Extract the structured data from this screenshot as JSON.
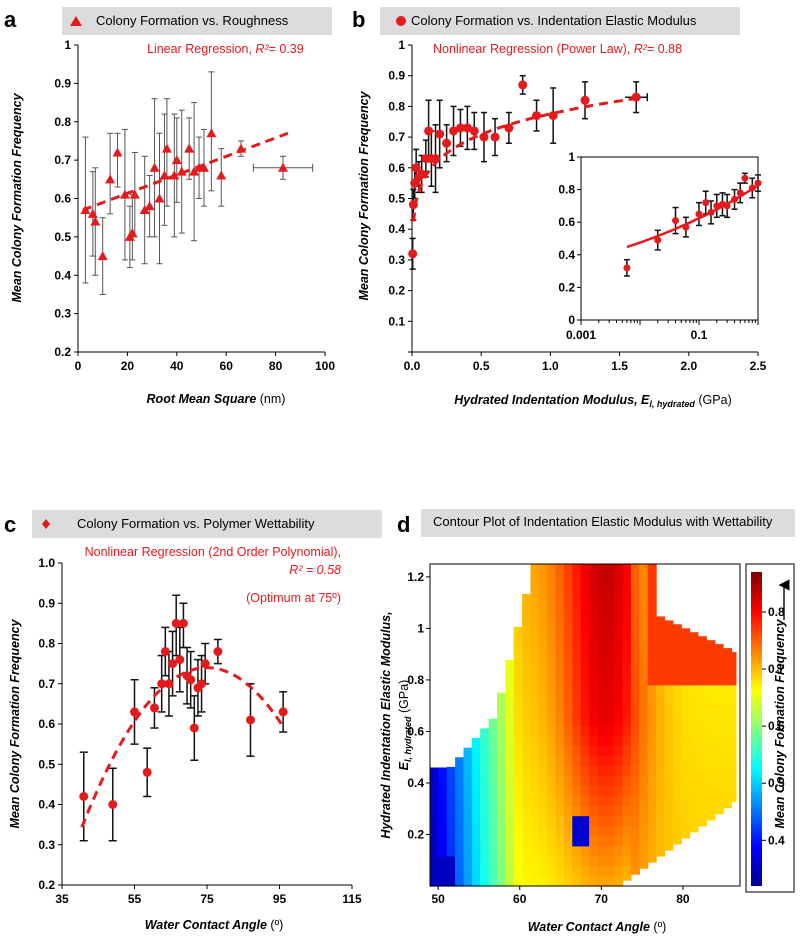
{
  "colors": {
    "marker": "#e41a1c",
    "fit": "#e41a1c",
    "title_bg": "#dcdcdc"
  },
  "panels": {
    "a": {
      "letter": "a",
      "title": "Colony Formation vs. Roughness",
      "annotation_prefix": "Linear Regression, ",
      "r2_symbol": "R²",
      "r2_value": "= 0.39"
    },
    "b": {
      "letter": "b",
      "title": "Colony Formation vs. Indentation Elastic Modulus",
      "annotation_prefix": "Nonlinear Regression (Power Law), ",
      "r2_symbol": "R²",
      "r2_value": "= 0.88"
    },
    "c": {
      "letter": "c",
      "title": "Colony Formation vs. Polymer Wettability",
      "annotation_line1": "Nonlinear Regression (2nd Order Polynomial),",
      "annotation_line2": "R² = 0.58",
      "annotation_line3": "(Optimum at 75º)"
    },
    "d": {
      "letter": "d",
      "title": "Contour Plot of Indentation Elastic Modulus with Wettability"
    }
  },
  "chart_data": [
    {
      "id": "a",
      "type": "scatter",
      "title": "Colony Formation vs. Roughness",
      "xlabel": "Root Mean Square",
      "xunit": " (nm)",
      "ylabel": "Mean Colony Formation Frequency",
      "xlim": [
        0,
        100
      ],
      "ylim": [
        0.2,
        1.0
      ],
      "xticks": [
        0,
        20,
        40,
        60,
        80,
        100
      ],
      "yticks": [
        0.2,
        0.3,
        0.4,
        0.5,
        0.6,
        0.7,
        0.8,
        0.9,
        1
      ],
      "marker": "triangle",
      "points": [
        {
          "x": 3,
          "y": 0.57,
          "lo": 0.38,
          "hi": 0.76
        },
        {
          "x": 6,
          "y": 0.56,
          "lo": 0.45,
          "hi": 0.67
        },
        {
          "x": 7,
          "y": 0.54,
          "lo": 0.4,
          "hi": 0.68
        },
        {
          "x": 10,
          "y": 0.45,
          "lo": 0.35,
          "hi": 0.55
        },
        {
          "x": 13,
          "y": 0.65,
          "lo": 0.56,
          "hi": 0.77
        },
        {
          "x": 16,
          "y": 0.72,
          "lo": 0.63,
          "hi": 0.77
        },
        {
          "x": 19,
          "y": 0.61,
          "lo": 0.44,
          "hi": 0.78
        },
        {
          "x": 21,
          "y": 0.5,
          "lo": 0.42,
          "hi": 0.58
        },
        {
          "x": 22,
          "y": 0.51,
          "lo": 0.44,
          "hi": 0.61
        },
        {
          "x": 23,
          "y": 0.61,
          "lo": 0.5,
          "hi": 0.72
        },
        {
          "x": 27,
          "y": 0.57,
          "lo": 0.43,
          "hi": 0.71
        },
        {
          "x": 29,
          "y": 0.58,
          "lo": 0.5,
          "hi": 0.66
        },
        {
          "x": 31,
          "y": 0.68,
          "lo": 0.5,
          "hi": 0.86
        },
        {
          "x": 33,
          "y": 0.6,
          "lo": 0.43,
          "hi": 0.77
        },
        {
          "x": 35,
          "y": 0.66,
          "lo": 0.53,
          "hi": 0.82
        },
        {
          "x": 36,
          "y": 0.73,
          "lo": 0.58,
          "hi": 0.86
        },
        {
          "x": 39,
          "y": 0.66,
          "lo": 0.5,
          "hi": 0.82
        },
        {
          "x": 40,
          "y": 0.7,
          "lo": 0.59,
          "hi": 0.81
        },
        {
          "x": 42,
          "y": 0.67,
          "lo": 0.51,
          "hi": 0.83
        },
        {
          "x": 45,
          "y": 0.73,
          "lo": 0.65,
          "hi": 0.81
        },
        {
          "x": 47,
          "y": 0.67,
          "lo": 0.49,
          "hi": 0.85
        },
        {
          "x": 49,
          "y": 0.68,
          "lo": 0.6,
          "hi": 0.76
        },
        {
          "x": 51,
          "y": 0.68,
          "lo": 0.58,
          "hi": 0.78
        },
        {
          "x": 54,
          "y": 0.77,
          "lo": 0.62,
          "hi": 0.93
        },
        {
          "x": 58,
          "y": 0.66,
          "lo": 0.58,
          "hi": 0.73
        },
        {
          "x": 66,
          "y": 0.73,
          "lo": 0.71,
          "hi": 0.75
        },
        {
          "x": 83,
          "y": 0.68,
          "lo": 0.65,
          "hi": 0.71,
          "xerr": [
            71,
            95
          ]
        }
      ],
      "fit": {
        "x": [
          2,
          85
        ],
        "y": [
          0.57,
          0.77
        ]
      }
    },
    {
      "id": "b",
      "type": "scatter",
      "title": "Colony Formation vs. Indentation Elastic Modulus",
      "xlabel": "Hydrated Indentation Modulus, E",
      "xsub": "I, hydrated",
      "xunit": "  (GPa)",
      "ylabel": "Mean Colony Formation Frequency",
      "xlim": [
        0,
        2.5
      ],
      "ylim": [
        0,
        1
      ],
      "xticks": [
        0.0,
        0.5,
        1.0,
        1.5,
        2.0,
        2.5
      ],
      "yticks": [
        0,
        0.1,
        0.2,
        0.3,
        0.4,
        0.5,
        0.6,
        0.7,
        0.8,
        0.9,
        1
      ],
      "marker": "circle",
      "points": [
        {
          "x": 0.005,
          "y": 0.32,
          "lo": 0.27,
          "hi": 0.37
        },
        {
          "x": 0.01,
          "y": 0.48,
          "lo": 0.43,
          "hi": 0.53
        },
        {
          "x": 0.02,
          "y": 0.55,
          "lo": 0.5,
          "hi": 0.6
        },
        {
          "x": 0.03,
          "y": 0.6,
          "lo": 0.54,
          "hi": 0.66
        },
        {
          "x": 0.05,
          "y": 0.57,
          "lo": 0.52,
          "hi": 0.62
        },
        {
          "x": 0.07,
          "y": 0.58,
          "lo": 0.52,
          "hi": 0.64
        },
        {
          "x": 0.1,
          "y": 0.63,
          "lo": 0.57,
          "hi": 0.69
        },
        {
          "x": 0.12,
          "y": 0.72,
          "lo": 0.62,
          "hi": 0.82
        },
        {
          "x": 0.14,
          "y": 0.63,
          "lo": 0.54,
          "hi": 0.72
        },
        {
          "x": 0.17,
          "y": 0.63,
          "lo": 0.52,
          "hi": 0.74
        },
        {
          "x": 0.2,
          "y": 0.71,
          "lo": 0.6,
          "hi": 0.82
        },
        {
          "x": 0.25,
          "y": 0.68,
          "lo": 0.62,
          "hi": 0.74
        },
        {
          "x": 0.3,
          "y": 0.72,
          "lo": 0.64,
          "hi": 0.8
        },
        {
          "x": 0.35,
          "y": 0.73,
          "lo": 0.67,
          "hi": 0.79
        },
        {
          "x": 0.4,
          "y": 0.73,
          "lo": 0.66,
          "hi": 0.8
        },
        {
          "x": 0.45,
          "y": 0.72,
          "lo": 0.66,
          "hi": 0.78
        },
        {
          "x": 0.52,
          "y": 0.7,
          "lo": 0.62,
          "hi": 0.78
        },
        {
          "x": 0.6,
          "y": 0.7,
          "lo": 0.64,
          "hi": 0.76
        },
        {
          "x": 0.7,
          "y": 0.73,
          "lo": 0.68,
          "hi": 0.78
        },
        {
          "x": 0.8,
          "y": 0.87,
          "lo": 0.84,
          "hi": 0.9
        },
        {
          "x": 0.9,
          "y": 0.77,
          "lo": 0.72,
          "hi": 0.82
        },
        {
          "x": 1.02,
          "y": 0.77,
          "lo": 0.68,
          "hi": 0.86
        },
        {
          "x": 1.25,
          "y": 0.82,
          "lo": 0.76,
          "hi": 0.88
        },
        {
          "x": 1.62,
          "y": 0.83,
          "lo": 0.78,
          "hi": 0.88,
          "xerr": [
            1.54,
            1.7
          ]
        }
      ],
      "fit": {
        "form": "power",
        "a": 0.7757,
        "b": 0.1306
      },
      "inset": {
        "xscale": "log",
        "xlim": [
          0.001,
          1
        ],
        "ylim": [
          0,
          1
        ],
        "xtick_labels": [
          "0.001",
          "0.1"
        ],
        "yticks": [
          0,
          0.2,
          0.4,
          0.6,
          0.8,
          1
        ],
        "points": [
          {
            "x": 0.006,
            "y": 0.32,
            "lo": 0.27,
            "hi": 0.37
          },
          {
            "x": 0.02,
            "y": 0.49,
            "lo": 0.43,
            "hi": 0.55
          },
          {
            "x": 0.04,
            "y": 0.61,
            "lo": 0.53,
            "hi": 0.69
          },
          {
            "x": 0.06,
            "y": 0.57,
            "lo": 0.51,
            "hi": 0.63
          },
          {
            "x": 0.1,
            "y": 0.65,
            "lo": 0.58,
            "hi": 0.72
          },
          {
            "x": 0.13,
            "y": 0.72,
            "lo": 0.65,
            "hi": 0.79
          },
          {
            "x": 0.16,
            "y": 0.66,
            "lo": 0.59,
            "hi": 0.73
          },
          {
            "x": 0.2,
            "y": 0.7,
            "lo": 0.63,
            "hi": 0.77
          },
          {
            "x": 0.25,
            "y": 0.71,
            "lo": 0.64,
            "hi": 0.78
          },
          {
            "x": 0.3,
            "y": 0.7,
            "lo": 0.63,
            "hi": 0.77
          },
          {
            "x": 0.4,
            "y": 0.74,
            "lo": 0.68,
            "hi": 0.8
          },
          {
            "x": 0.5,
            "y": 0.78,
            "lo": 0.72,
            "hi": 0.84
          },
          {
            "x": 0.6,
            "y": 0.87,
            "lo": 0.84,
            "hi": 0.9
          },
          {
            "x": 0.8,
            "y": 0.81,
            "lo": 0.75,
            "hi": 0.87
          },
          {
            "x": 1.0,
            "y": 0.84,
            "lo": 0.79,
            "hi": 0.89
          }
        ]
      }
    },
    {
      "id": "c",
      "type": "scatter",
      "title": "Colony Formation vs. Polymer Wettability",
      "xlabel": "Water Contact Angle",
      "xunit": " (º)",
      "ylabel": "Mean Colony Formation Frequency",
      "xlim": [
        35,
        115
      ],
      "ylim": [
        0.2,
        1.0
      ],
      "xticks": [
        35,
        55,
        75,
        95,
        115
      ],
      "yticks": [
        0.2,
        0.3,
        0.4,
        0.5,
        0.6,
        0.7,
        0.8,
        0.9,
        1.0
      ],
      "marker": "diamond",
      "points": [
        {
          "x": 41,
          "y": 0.42,
          "lo": 0.31,
          "hi": 0.53
        },
        {
          "x": 49,
          "y": 0.4,
          "lo": 0.31,
          "hi": 0.49
        },
        {
          "x": 55,
          "y": 0.63,
          "lo": 0.55,
          "hi": 0.71
        },
        {
          "x": 58.5,
          "y": 0.48,
          "lo": 0.42,
          "hi": 0.54
        },
        {
          "x": 60.5,
          "y": 0.64,
          "lo": 0.59,
          "hi": 0.69
        },
        {
          "x": 62.5,
          "y": 0.7,
          "lo": 0.63,
          "hi": 0.77
        },
        {
          "x": 63.5,
          "y": 0.78,
          "lo": 0.72,
          "hi": 0.84
        },
        {
          "x": 64.5,
          "y": 0.7,
          "lo": 0.62,
          "hi": 0.78
        },
        {
          "x": 65.5,
          "y": 0.75,
          "lo": 0.67,
          "hi": 0.83
        },
        {
          "x": 66.5,
          "y": 0.85,
          "lo": 0.77,
          "hi": 0.92
        },
        {
          "x": 67.5,
          "y": 0.76,
          "lo": 0.68,
          "hi": 0.84
        },
        {
          "x": 68.5,
          "y": 0.85,
          "lo": 0.79,
          "hi": 0.9
        },
        {
          "x": 69.5,
          "y": 0.72,
          "lo": 0.65,
          "hi": 0.79
        },
        {
          "x": 70.5,
          "y": 0.71,
          "lo": 0.64,
          "hi": 0.78
        },
        {
          "x": 71.5,
          "y": 0.59,
          "lo": 0.51,
          "hi": 0.67
        },
        {
          "x": 72.5,
          "y": 0.69,
          "lo": 0.62,
          "hi": 0.76
        },
        {
          "x": 73.5,
          "y": 0.7,
          "lo": 0.63,
          "hi": 0.77
        },
        {
          "x": 74.5,
          "y": 0.75,
          "lo": 0.7,
          "hi": 0.8
        },
        {
          "x": 78,
          "y": 0.78,
          "lo": 0.75,
          "hi": 0.81
        },
        {
          "x": 87,
          "y": 0.61,
          "lo": 0.52,
          "hi": 0.7
        },
        {
          "x": 96,
          "y": 0.63,
          "lo": 0.58,
          "hi": 0.68
        }
      ],
      "fit": {
        "form": "poly2",
        "vertex_x": 75,
        "vertex_y": 0.74,
        "k": 0.000333,
        "x": [
          40.5,
          96
        ]
      }
    },
    {
      "id": "d",
      "type": "heatmap",
      "title": "Contour Plot of Indentation Elastic Modulus with Wettability",
      "xlabel": "Water Contact Angle",
      "xunit": " (º)",
      "ylabel": "Hydrated Indentation Elastic Modulus,",
      "ylabel2": "E",
      "ylabel2_sub": "I, hydrated",
      "yunit": "  (GPa)",
      "xlim": [
        49,
        87
      ],
      "ylim": [
        0,
        1.25
      ],
      "xticks": [
        50,
        60,
        70,
        80
      ],
      "yticks": [
        0.2,
        0.4,
        0.6,
        0.8,
        1,
        1.2
      ],
      "colorbar": {
        "label": "Mean Colony Formation Frequency",
        "range": [
          0.32,
          0.87
        ],
        "ticks": [
          0.4,
          0.5,
          0.6,
          0.7,
          0.8
        ]
      }
    }
  ]
}
